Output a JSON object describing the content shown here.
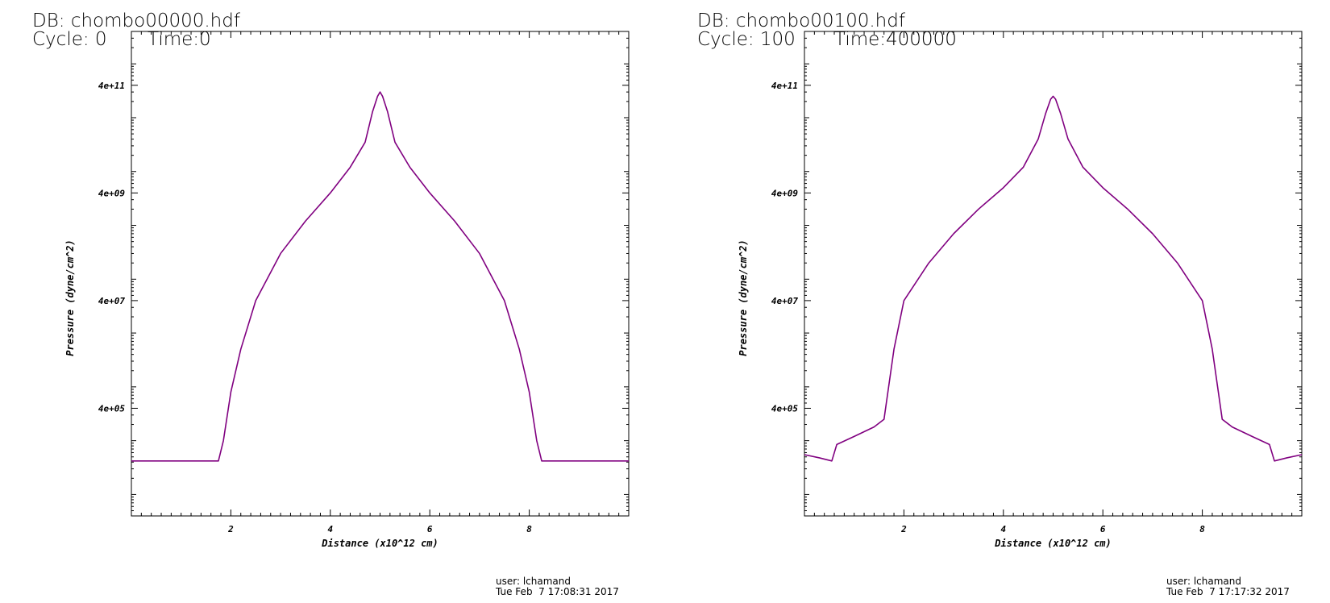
{
  "panels": [
    {
      "db_label": "DB: chombo00000.hdf",
      "cycle_label": "Cycle: 0",
      "time_label": "Time:0",
      "user_label": "user: lchamand",
      "date_label": "Tue Feb  7 17:08:31 2017"
    },
    {
      "db_label": "DB: chombo00100.hdf",
      "cycle_label": "Cycle: 100",
      "time_label": "Time:400000",
      "user_label": "user: lchamand",
      "date_label": "Tue Feb  7 17:17:32 2017"
    }
  ],
  "colors": {
    "curve": "#800080",
    "axis": "#000000",
    "background": "#ffffff"
  },
  "chart_data": [
    {
      "type": "line",
      "title": "",
      "xlabel": "Distance (x10^12 cm)",
      "ylabel": "Pressure (dyne/cm^2)",
      "xlim": [
        0,
        10
      ],
      "ylim": [
        4000,
        4000000000000.0
      ],
      "yscale": "log",
      "grid": false,
      "x_ticks": [
        "2",
        "4",
        "6",
        "8"
      ],
      "y_ticks": [
        "4e+05",
        "4e+07",
        "4e+09",
        "4e+11"
      ],
      "series": [
        {
          "x": [
            0,
            0.5,
            1.0,
            1.5,
            1.75,
            1.85,
            2.0,
            2.2,
            2.5,
            3.0,
            3.5,
            4.0,
            4.4,
            4.7,
            4.85,
            4.95,
            5.0,
            5.05,
            5.15,
            5.3,
            5.6,
            6.0,
            6.5,
            7.0,
            7.5,
            7.8,
            8.0,
            8.15,
            8.25,
            8.5,
            9.0,
            9.5,
            10
          ],
          "y": [
            42000,
            42000,
            42000,
            42000,
            42000,
            100000,
            800000,
            5000000,
            40000000,
            300000000,
            1200000000,
            4000000000,
            12000000000,
            35000000000,
            130000000000,
            250000000000,
            300000000000,
            250000000000,
            130000000000,
            35000000000,
            12000000000,
            4000000000,
            1200000000,
            300000000,
            40000000,
            5000000,
            800000,
            100000,
            42000,
            42000,
            42000,
            42000,
            42000
          ]
        }
      ]
    },
    {
      "type": "line",
      "title": "",
      "xlabel": "Distance (x10^12 cm)",
      "ylabel": "Pressure (dyne/cm^2)",
      "xlim": [
        0,
        10
      ],
      "ylim": [
        4000,
        4000000000000.0
      ],
      "yscale": "log",
      "grid": false,
      "x_ticks": [
        "2",
        "4",
        "6",
        "8"
      ],
      "y_ticks": [
        "4e+05",
        "4e+07",
        "4e+09",
        "4e+11"
      ],
      "series": [
        {
          "x": [
            0,
            0.3,
            0.55,
            0.65,
            1.0,
            1.4,
            1.6,
            1.8,
            2.0,
            2.5,
            3.0,
            3.5,
            4.0,
            4.4,
            4.7,
            4.85,
            4.95,
            5.0,
            5.05,
            5.15,
            5.3,
            5.6,
            6.0,
            6.5,
            7.0,
            7.5,
            8.0,
            8.2,
            8.4,
            8.6,
            9.0,
            9.35,
            9.45,
            9.7,
            10
          ],
          "y": [
            55000,
            48000,
            42000,
            85000,
            120000,
            180000,
            250000,
            5000000,
            40000000,
            200000000,
            700000000,
            2000000000,
            5000000000,
            12000000000,
            40000000000,
            120000000000,
            220000000000,
            250000000000,
            220000000000,
            120000000000,
            40000000000,
            12000000000,
            5000000000,
            2000000000,
            700000000,
            200000000,
            40000000,
            5000000,
            250000,
            180000,
            120000,
            85000,
            42000,
            48000,
            55000
          ]
        }
      ]
    }
  ]
}
